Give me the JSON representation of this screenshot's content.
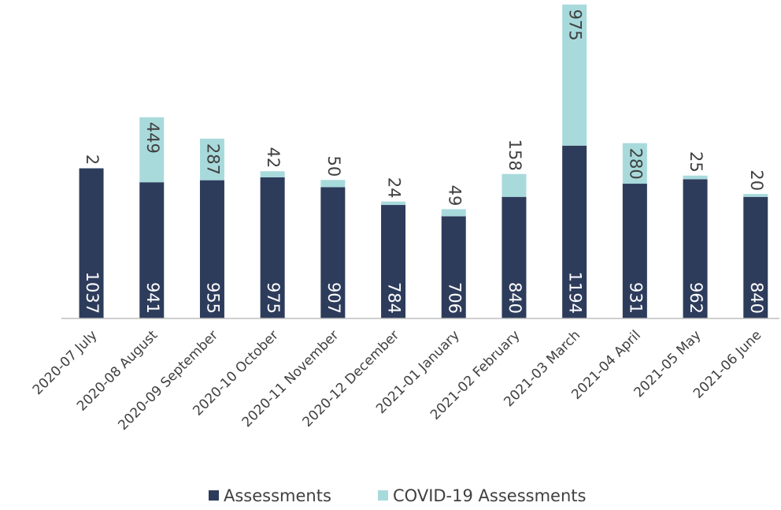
{
  "chart_data": {
    "type": "stacked_bar",
    "categories": [
      "2020-07 July",
      "2020-08 August",
      "2020-09 September",
      "2020-10 October",
      "2020-11 November",
      "2020-12 December",
      "2021-01 January",
      "2021-02 February",
      "2021-03 March",
      "2021-04 April",
      "2021-05 May",
      "2021-06 June"
    ],
    "series": [
      {
        "name": "Assessments",
        "color": "#2e3c5c",
        "values": [
          1037,
          941,
          955,
          975,
          907,
          784,
          706,
          840,
          1194,
          931,
          962,
          840
        ]
      },
      {
        "name": "COVID-19 Assessments",
        "color": "#a8dadc",
        "values": [
          2,
          449,
          287,
          42,
          50,
          24,
          49,
          158,
          975,
          280,
          25,
          20
        ]
      }
    ],
    "ylim": [
      0,
      2200
    ],
    "legend": "bottom"
  }
}
